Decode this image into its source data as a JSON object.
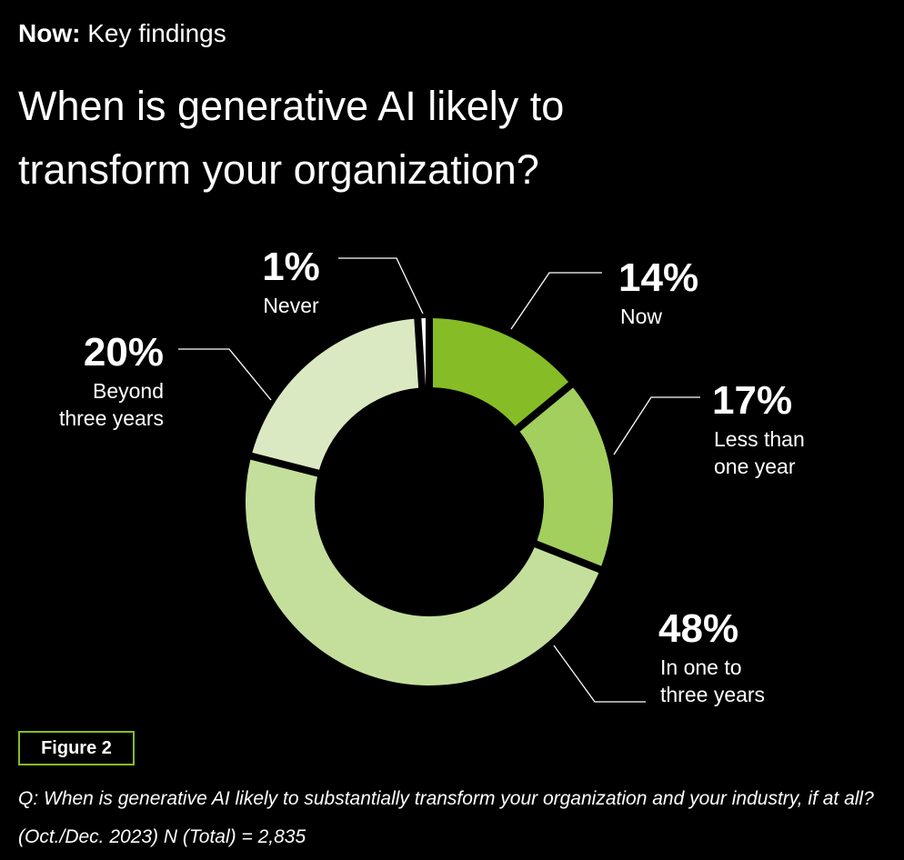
{
  "header": {
    "kicker_bold": "Now:",
    "kicker_rest": "Key findings",
    "title": "When is generative AI likely to transform your organization?"
  },
  "chart_data": {
    "type": "pie",
    "title": "When is generative AI likely to transform your organization?",
    "donut": true,
    "slices": [
      {
        "label": "Now",
        "value": 14,
        "display": "14%",
        "lines": [
          "Now"
        ],
        "color": "#86bc25"
      },
      {
        "label": "Less than one year",
        "value": 17,
        "display": "17%",
        "lines": [
          "Less than",
          "one year"
        ],
        "color": "#a3cf5e"
      },
      {
        "label": "In one to three years",
        "value": 48,
        "display": "48%",
        "lines": [
          "In one to",
          "three years"
        ],
        "color": "#c4df9b"
      },
      {
        "label": "Beyond three years",
        "value": 20,
        "display": "20%",
        "lines": [
          "Beyond",
          "three years"
        ],
        "color": "#dbe9c2"
      },
      {
        "label": "Never",
        "value": 1,
        "display": "1%",
        "lines": [
          "Never"
        ],
        "color": "#ffffff"
      }
    ]
  },
  "footer": {
    "figure_label": "Figure 2",
    "question": "Q: When is generative AI likely to substantially transform your organization and your industry, if at all?",
    "base": "(Oct./Dec. 2023) N (Total) = 2,835"
  },
  "colors": {
    "background": "#000000",
    "accent": "#86bc25"
  }
}
